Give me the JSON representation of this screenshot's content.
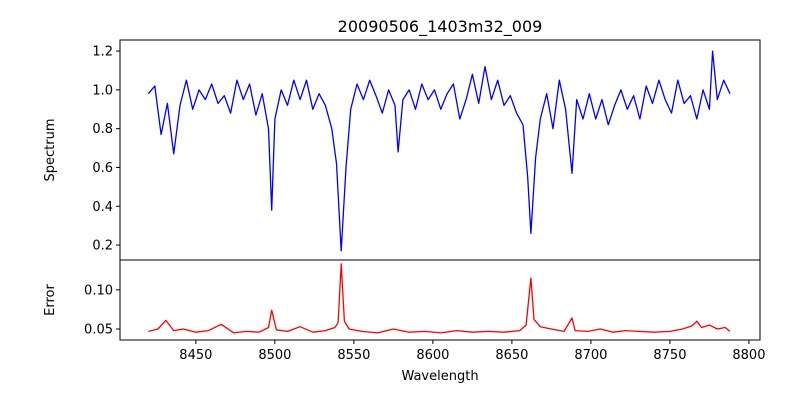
{
  "chart_data": [
    {
      "type": "line",
      "title": "20090506_1403m32_009",
      "xlabel": "",
      "ylabel": "Spectrum",
      "xlim": [
        8402,
        8807
      ],
      "ylim": [
        0.123,
        1.257
      ],
      "yticks": [
        0.2,
        0.4,
        0.6,
        0.8,
        1.0,
        1.2
      ],
      "ytick_labels": [
        "0.2",
        "0.4",
        "0.6",
        "0.8",
        "1.0",
        "1.2"
      ],
      "color": "#0000ff",
      "x": [
        8420,
        8424,
        8428,
        8432,
        8436,
        8440,
        8444,
        8448,
        8452,
        8456,
        8460,
        8464,
        8468,
        8472,
        8476,
        8480,
        8484,
        8488,
        8492,
        8496,
        8498,
        8500,
        8504,
        8508,
        8512,
        8516,
        8520,
        8524,
        8528,
        8532,
        8536,
        8539,
        8542,
        8545,
        8548,
        8552,
        8556,
        8560,
        8564,
        8568,
        8572,
        8576,
        8578,
        8581,
        8585,
        8589,
        8593,
        8597,
        8601,
        8605,
        8609,
        8613,
        8617,
        8621,
        8625,
        8629,
        8633,
        8637,
        8641,
        8645,
        8649,
        8653,
        8657,
        8660,
        8662,
        8665,
        8668,
        8672,
        8676,
        8680,
        8684,
        8688,
        8691,
        8695,
        8699,
        8703,
        8707,
        8711,
        8715,
        8719,
        8723,
        8727,
        8731,
        8735,
        8739,
        8743,
        8747,
        8751,
        8755,
        8759,
        8763,
        8767,
        8771,
        8775,
        8777,
        8780,
        8784,
        8788
      ],
      "y": [
        0.98,
        1.02,
        0.77,
        0.93,
        0.67,
        0.92,
        1.05,
        0.9,
        1.0,
        0.95,
        1.03,
        0.93,
        0.97,
        0.88,
        1.05,
        0.95,
        1.03,
        0.87,
        0.98,
        0.8,
        0.38,
        0.85,
        1.0,
        0.92,
        1.05,
        0.95,
        1.05,
        0.9,
        0.98,
        0.92,
        0.8,
        0.62,
        0.17,
        0.6,
        0.9,
        1.03,
        0.95,
        1.05,
        0.97,
        0.88,
        1.0,
        0.92,
        0.68,
        0.95,
        1.0,
        0.9,
        1.03,
        0.95,
        1.0,
        0.9,
        0.98,
        1.03,
        0.85,
        0.95,
        1.08,
        0.93,
        1.12,
        0.95,
        1.05,
        0.92,
        0.97,
        0.88,
        0.82,
        0.55,
        0.26,
        0.65,
        0.85,
        0.98,
        0.8,
        1.05,
        0.9,
        0.57,
        0.95,
        0.85,
        0.98,
        0.85,
        0.95,
        0.82,
        0.92,
        1.0,
        0.9,
        0.97,
        0.85,
        1.02,
        0.93,
        1.05,
        0.95,
        0.88,
        1.05,
        0.93,
        0.97,
        0.85,
        1.0,
        0.9,
        1.2,
        0.95,
        1.05,
        0.98
      ]
    },
    {
      "type": "line",
      "title": "",
      "xlabel": "Wavelength",
      "ylabel": "Error",
      "xlim": [
        8402,
        8807
      ],
      "ylim": [
        0.036,
        0.138
      ],
      "xticks": [
        8450,
        8500,
        8550,
        8600,
        8650,
        8700,
        8750,
        8800
      ],
      "xtick_labels": [
        "8450",
        "8500",
        "8550",
        "8600",
        "8650",
        "8700",
        "8750",
        "8800"
      ],
      "yticks": [
        0.05,
        0.1
      ],
      "ytick_labels": [
        "0.05",
        "0.10"
      ],
      "color": "#ff0000",
      "x": [
        8420,
        8426,
        8431,
        8436,
        8442,
        8450,
        8458,
        8466,
        8474,
        8482,
        8490,
        8496,
        8498,
        8501,
        8508,
        8516,
        8524,
        8532,
        8538,
        8540,
        8542,
        8544,
        8547,
        8555,
        8565,
        8575,
        8585,
        8595,
        8605,
        8615,
        8625,
        8635,
        8645,
        8655,
        8659,
        8662,
        8664,
        8668,
        8675,
        8683,
        8688,
        8690,
        8698,
        8706,
        8714,
        8722,
        8730,
        8740,
        8750,
        8758,
        8764,
        8767,
        8770,
        8775,
        8780,
        8785,
        8788
      ],
      "y": [
        0.047,
        0.05,
        0.061,
        0.048,
        0.05,
        0.046,
        0.048,
        0.056,
        0.045,
        0.047,
        0.046,
        0.052,
        0.074,
        0.049,
        0.047,
        0.053,
        0.046,
        0.048,
        0.052,
        0.058,
        0.133,
        0.06,
        0.05,
        0.047,
        0.045,
        0.05,
        0.046,
        0.047,
        0.045,
        0.048,
        0.046,
        0.047,
        0.046,
        0.048,
        0.055,
        0.115,
        0.062,
        0.053,
        0.05,
        0.047,
        0.064,
        0.048,
        0.047,
        0.05,
        0.046,
        0.048,
        0.047,
        0.046,
        0.047,
        0.05,
        0.054,
        0.06,
        0.052,
        0.055,
        0.05,
        0.052,
        0.047
      ]
    }
  ]
}
